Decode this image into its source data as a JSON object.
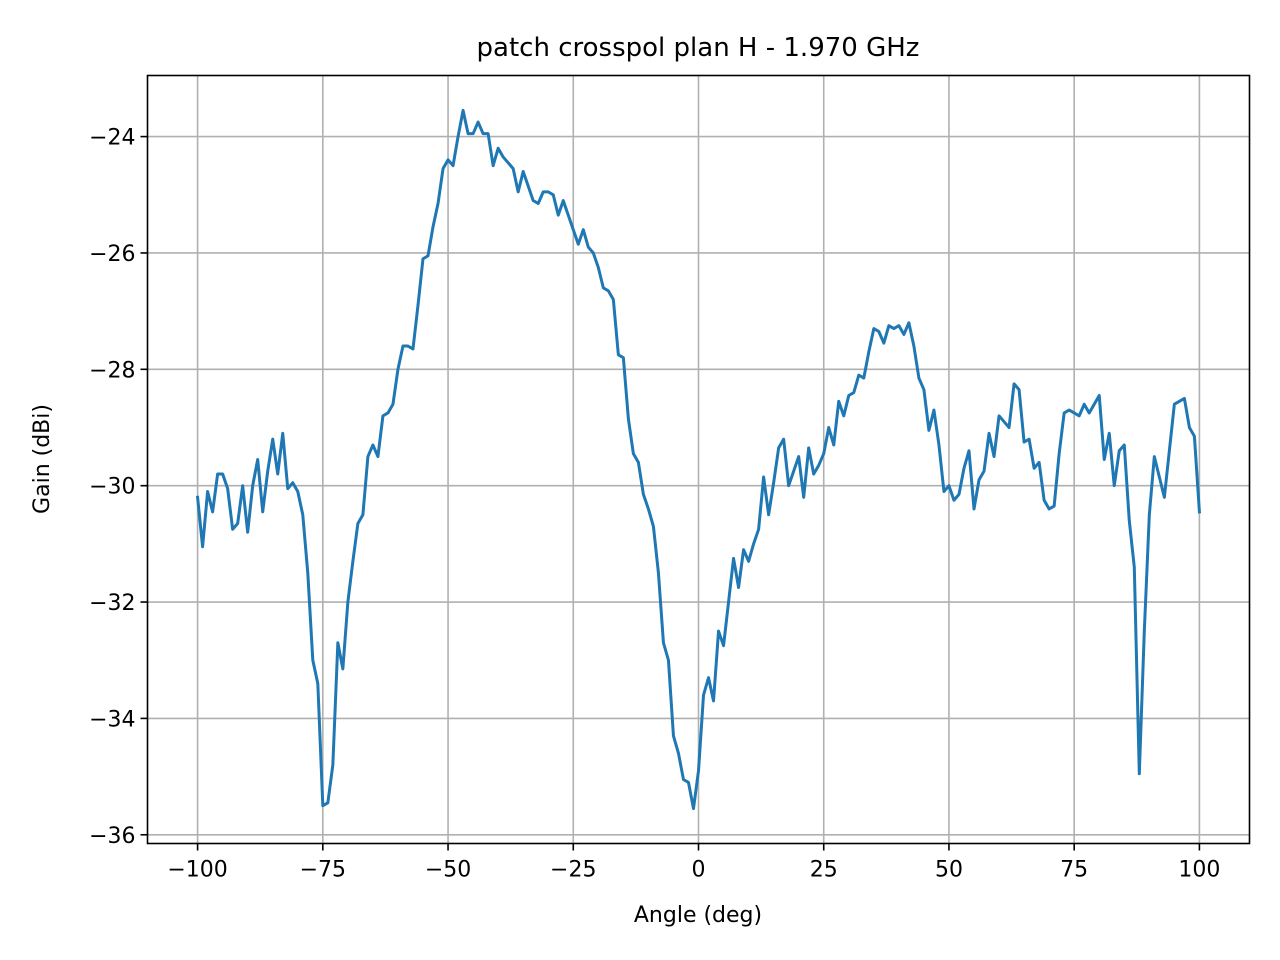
{
  "chart_data": {
    "type": "line",
    "title": "patch crosspol plan H - 1.970 GHz",
    "xlabel": "Angle (deg)",
    "ylabel": "Gain (dBi)",
    "xlim": [
      -110,
      110
    ],
    "ylim": [
      -36.15,
      -22.95
    ],
    "xticks": [
      -100,
      -75,
      -50,
      -25,
      0,
      25,
      50,
      75,
      100
    ],
    "yticks": [
      -36,
      -34,
      -32,
      -30,
      -28,
      -26,
      -24
    ],
    "grid": true,
    "line_color": "#1f77b4",
    "series": [
      {
        "x": [
          -100,
          -99,
          -98,
          -97,
          -96,
          -95,
          -94,
          -93,
          -92,
          -91,
          -90,
          -89,
          -88,
          -87,
          -86,
          -85,
          -84,
          -83,
          -82,
          -81,
          -80,
          -79,
          -78,
          -77,
          -76,
          -75,
          -74,
          -73,
          -72,
          -71,
          -70,
          -69,
          -68,
          -67,
          -66,
          -65,
          -64,
          -63,
          -62,
          -61,
          -60,
          -59,
          -58,
          -57,
          -56,
          -55,
          -54,
          -53,
          -52,
          -51,
          -50,
          -49,
          -48,
          -47,
          -46,
          -45,
          -44,
          -43,
          -42,
          -41,
          -40,
          -39,
          -38,
          -37,
          -36,
          -35,
          -34,
          -33,
          -32,
          -31,
          -30,
          -29,
          -28,
          -27,
          -26,
          -25,
          -24,
          -23,
          -22,
          -21,
          -20,
          -19,
          -18,
          -17,
          -16,
          -15,
          -14,
          -13,
          -12,
          -11,
          -10,
          -9,
          -8,
          -7,
          -6,
          -5,
          -4,
          -3,
          -2,
          -1,
          0,
          1,
          2,
          3,
          4,
          5,
          6,
          7,
          8,
          9,
          10,
          11,
          12,
          13,
          14,
          15,
          16,
          17,
          18,
          19,
          20,
          21,
          22,
          23,
          24,
          25,
          26,
          27,
          28,
          29,
          30,
          31,
          32,
          33,
          34,
          35,
          36,
          37,
          38,
          39,
          40,
          41,
          42,
          43,
          44,
          45,
          46,
          47,
          48,
          49,
          50,
          51,
          52,
          53,
          54,
          55,
          56,
          57,
          58,
          59,
          60,
          61,
          62,
          63,
          64,
          65,
          66,
          67,
          68,
          69,
          70,
          71,
          72,
          73,
          74,
          75,
          76,
          77,
          78,
          79,
          80,
          81,
          82,
          83,
          84,
          85,
          86,
          87,
          88,
          89,
          90,
          91,
          92,
          93,
          94,
          95,
          96,
          97,
          98,
          99,
          100
        ],
        "values": [
          -30.2,
          -31.05,
          -30.1,
          -30.45,
          -29.8,
          -29.8,
          -30.05,
          -30.75,
          -30.65,
          -30.0,
          -30.8,
          -30.0,
          -29.55,
          -30.45,
          -29.75,
          -29.2,
          -29.8,
          -29.1,
          -30.05,
          -29.95,
          -30.1,
          -30.5,
          -31.5,
          -33.0,
          -33.4,
          -35.5,
          -35.45,
          -34.8,
          -32.7,
          -33.15,
          -32.0,
          -31.3,
          -30.65,
          -30.5,
          -29.5,
          -29.3,
          -29.5,
          -28.8,
          -28.75,
          -28.6,
          -28.0,
          -27.6,
          -27.6,
          -27.65,
          -26.9,
          -26.1,
          -26.05,
          -25.55,
          -25.15,
          -24.55,
          -24.4,
          -24.5,
          -24.0,
          -23.55,
          -23.95,
          -23.95,
          -23.75,
          -23.95,
          -23.95,
          -24.5,
          -24.2,
          -24.35,
          -24.45,
          -24.55,
          -24.95,
          -24.6,
          -24.85,
          -25.1,
          -25.15,
          -24.95,
          -24.95,
          -25.0,
          -25.35,
          -25.1,
          -25.35,
          -25.6,
          -25.85,
          -25.6,
          -25.9,
          -26.0,
          -26.25,
          -26.6,
          -26.65,
          -26.8,
          -27.75,
          -27.8,
          -28.85,
          -29.45,
          -29.6,
          -30.15,
          -30.4,
          -30.7,
          -31.5,
          -32.7,
          -33.0,
          -34.3,
          -34.6,
          -35.05,
          -35.1,
          -35.55,
          -34.9,
          -33.6,
          -33.3,
          -33.7,
          -32.5,
          -32.75,
          -32.0,
          -31.25,
          -31.75,
          -31.1,
          -31.3,
          -31.0,
          -30.75,
          -29.85,
          -30.5,
          -29.95,
          -29.35,
          -29.2,
          -30.0,
          -29.75,
          -29.5,
          -30.2,
          -29.35,
          -29.8,
          -29.65,
          -29.45,
          -29.0,
          -29.3,
          -28.55,
          -28.8,
          -28.45,
          -28.4,
          -28.1,
          -28.15,
          -27.7,
          -27.3,
          -27.35,
          -27.55,
          -27.25,
          -27.3,
          -27.25,
          -27.4,
          -27.2,
          -27.6,
          -28.15,
          -28.35,
          -29.05,
          -28.7,
          -29.3,
          -30.1,
          -30.0,
          -30.25,
          -30.15,
          -29.7,
          -29.4,
          -30.4,
          -29.9,
          -29.75,
          -29.1,
          -29.5,
          -28.8,
          -28.9,
          -29.0,
          -28.25,
          -28.35,
          -29.25,
          -29.2,
          -29.7,
          -29.6,
          -30.25,
          -30.4,
          -30.35,
          -29.45,
          -28.75,
          -28.7,
          -28.75,
          -28.8,
          -28.6,
          -28.75,
          -28.6,
          -28.45,
          -29.55,
          -29.1,
          -30.0,
          -29.4,
          -29.3,
          -30.6,
          -31.4,
          -34.95,
          -32.5,
          -30.5,
          -29.5,
          -29.85,
          -30.2,
          -29.4,
          -28.6,
          -28.55,
          -28.5,
          -29.0,
          -29.15,
          -30.45
        ]
      }
    ]
  }
}
